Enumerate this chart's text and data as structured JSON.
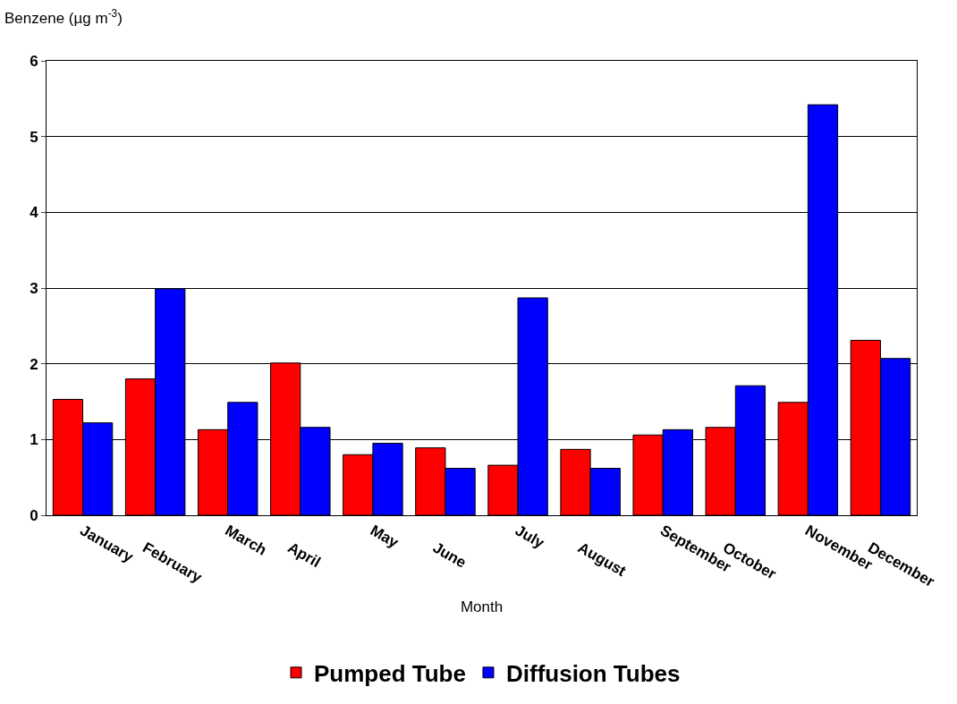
{
  "chart_data": {
    "type": "bar",
    "ylabel": "Benzene (µg m$^{-3}$)",
    "xlabel": "Month",
    "categories": [
      "January",
      "February",
      "March",
      "April",
      "May",
      "June",
      "July",
      "August",
      "September",
      "October",
      "November",
      "December"
    ],
    "series": [
      {
        "name": "Pumped Tube",
        "color": "#ff0000",
        "values": [
          1.53,
          1.8,
          1.13,
          2.01,
          0.8,
          0.89,
          0.66,
          0.87,
          1.06,
          1.16,
          1.49,
          2.31
        ]
      },
      {
        "name": "Diffusion Tubes",
        "color": "#0000ff",
        "values": [
          1.22,
          2.99,
          1.49,
          1.16,
          0.95,
          0.62,
          2.87,
          0.62,
          1.13,
          1.71,
          5.42,
          2.07
        ]
      }
    ],
    "ylim": [
      0,
      6
    ],
    "yticks": [
      0,
      1,
      2,
      3,
      4,
      5,
      6
    ],
    "grid": "y",
    "legend": "bottom"
  }
}
